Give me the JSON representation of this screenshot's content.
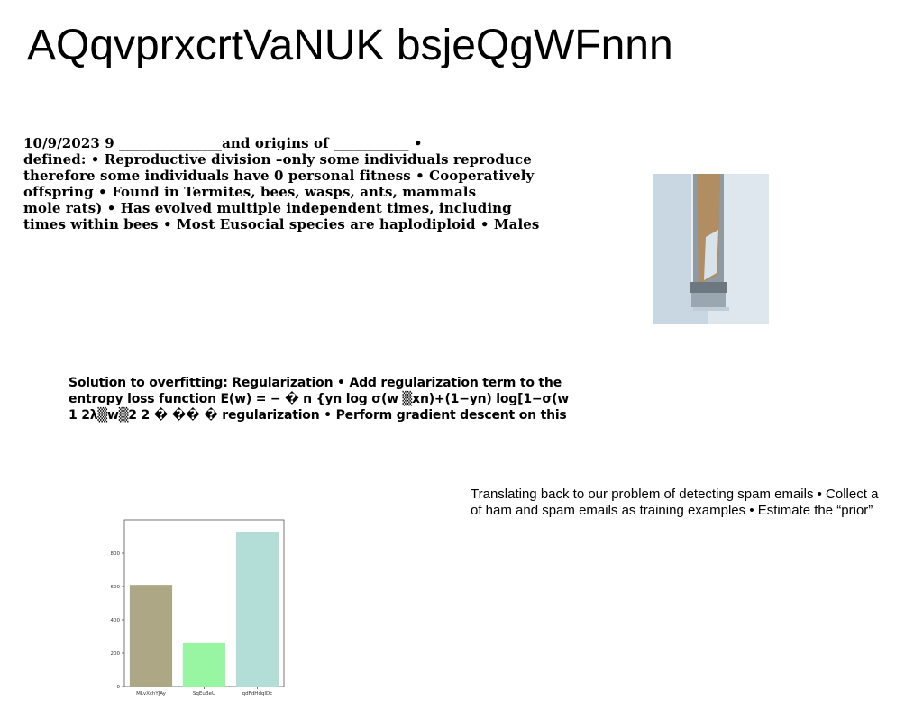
{
  "title": "AQqvprxcrtVaNUK bsjeQgWFnnn",
  "block1": {
    "lines": [
      "10/9/2023 9 _______________and origins of ___________ •",
      "defined: • Reproductive division –only some individuals reproduce",
      "therefore some individuals have 0 personal fitness • Cooperatively",
      "offspring • Found in Termites, bees, wasps, ants, mammals",
      "mole rats) • Has evolved multiple independent times, including",
      "times within bees • Most Eusocial species are haplodiploid • Males"
    ]
  },
  "block2": {
    "lines": [
      "Solution to overfitting: Regularization • Add regularization term to the",
      "entropy loss function E(w) = − � n {yn log σ(w ▒xn)+(1−yn) log[1−σ(w",
      "1 2λ▒w▒2 2 � �� � regularization • Perform gradient descent on this"
    ]
  },
  "block3": {
    "lines": [
      "Translating back to our problem of detecting spam emails • Collect a",
      "of ham and spam emails as training examples • Estimate the “prior”"
    ]
  },
  "chart_data": {
    "type": "bar",
    "categories": [
      "MLvXchYJAy",
      "SqEuBeU",
      "qdFdHdqIDc"
    ],
    "values": [
      610,
      260,
      930
    ],
    "colors": [
      "#aea785",
      "#98f5a2",
      "#b3ded8"
    ],
    "ylim": [
      0,
      1000
    ],
    "yticks": [
      0,
      200,
      400,
      600,
      800
    ],
    "grid": false
  }
}
